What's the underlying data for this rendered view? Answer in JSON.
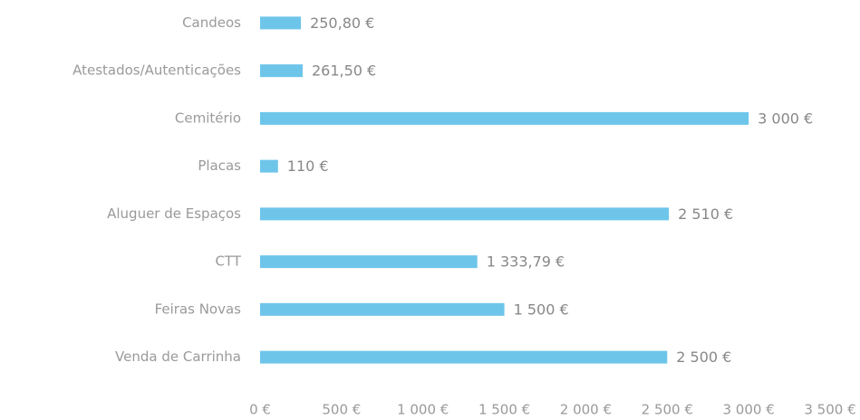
{
  "chart_data": {
    "type": "barh",
    "categories": [
      "Candeos",
      "Atestados/Autenticações",
      "Cemitério",
      "Placas",
      "Aluguer de Espaços",
      "CTT",
      "Feiras Novas",
      "Venda de Carrinha"
    ],
    "values": [
      250.8,
      261.5,
      3000,
      110,
      2510,
      1333.79,
      1500,
      2500
    ],
    "value_labels": [
      "250,80 €",
      "261,50 €",
      "3 000 €",
      "110 €",
      "2 510 €",
      "1 333,79 €",
      "1 500 €",
      "2 500 €"
    ],
    "color": "#6ec5ea",
    "xlim": [
      0,
      3500
    ],
    "xticks": [
      {
        "value": 0,
        "label": "0 €"
      },
      {
        "value": 500,
        "label": "500 €"
      },
      {
        "value": 1000,
        "label": "1 000 €"
      },
      {
        "value": 1500,
        "label": "1 500 €"
      },
      {
        "value": 2000,
        "label": "2 000 €"
      },
      {
        "value": 2500,
        "label": "2 500 €"
      },
      {
        "value": 3000,
        "label": "3 000 €"
      },
      {
        "value": 3500,
        "label": "3 500 €"
      }
    ],
    "grid": false
  }
}
